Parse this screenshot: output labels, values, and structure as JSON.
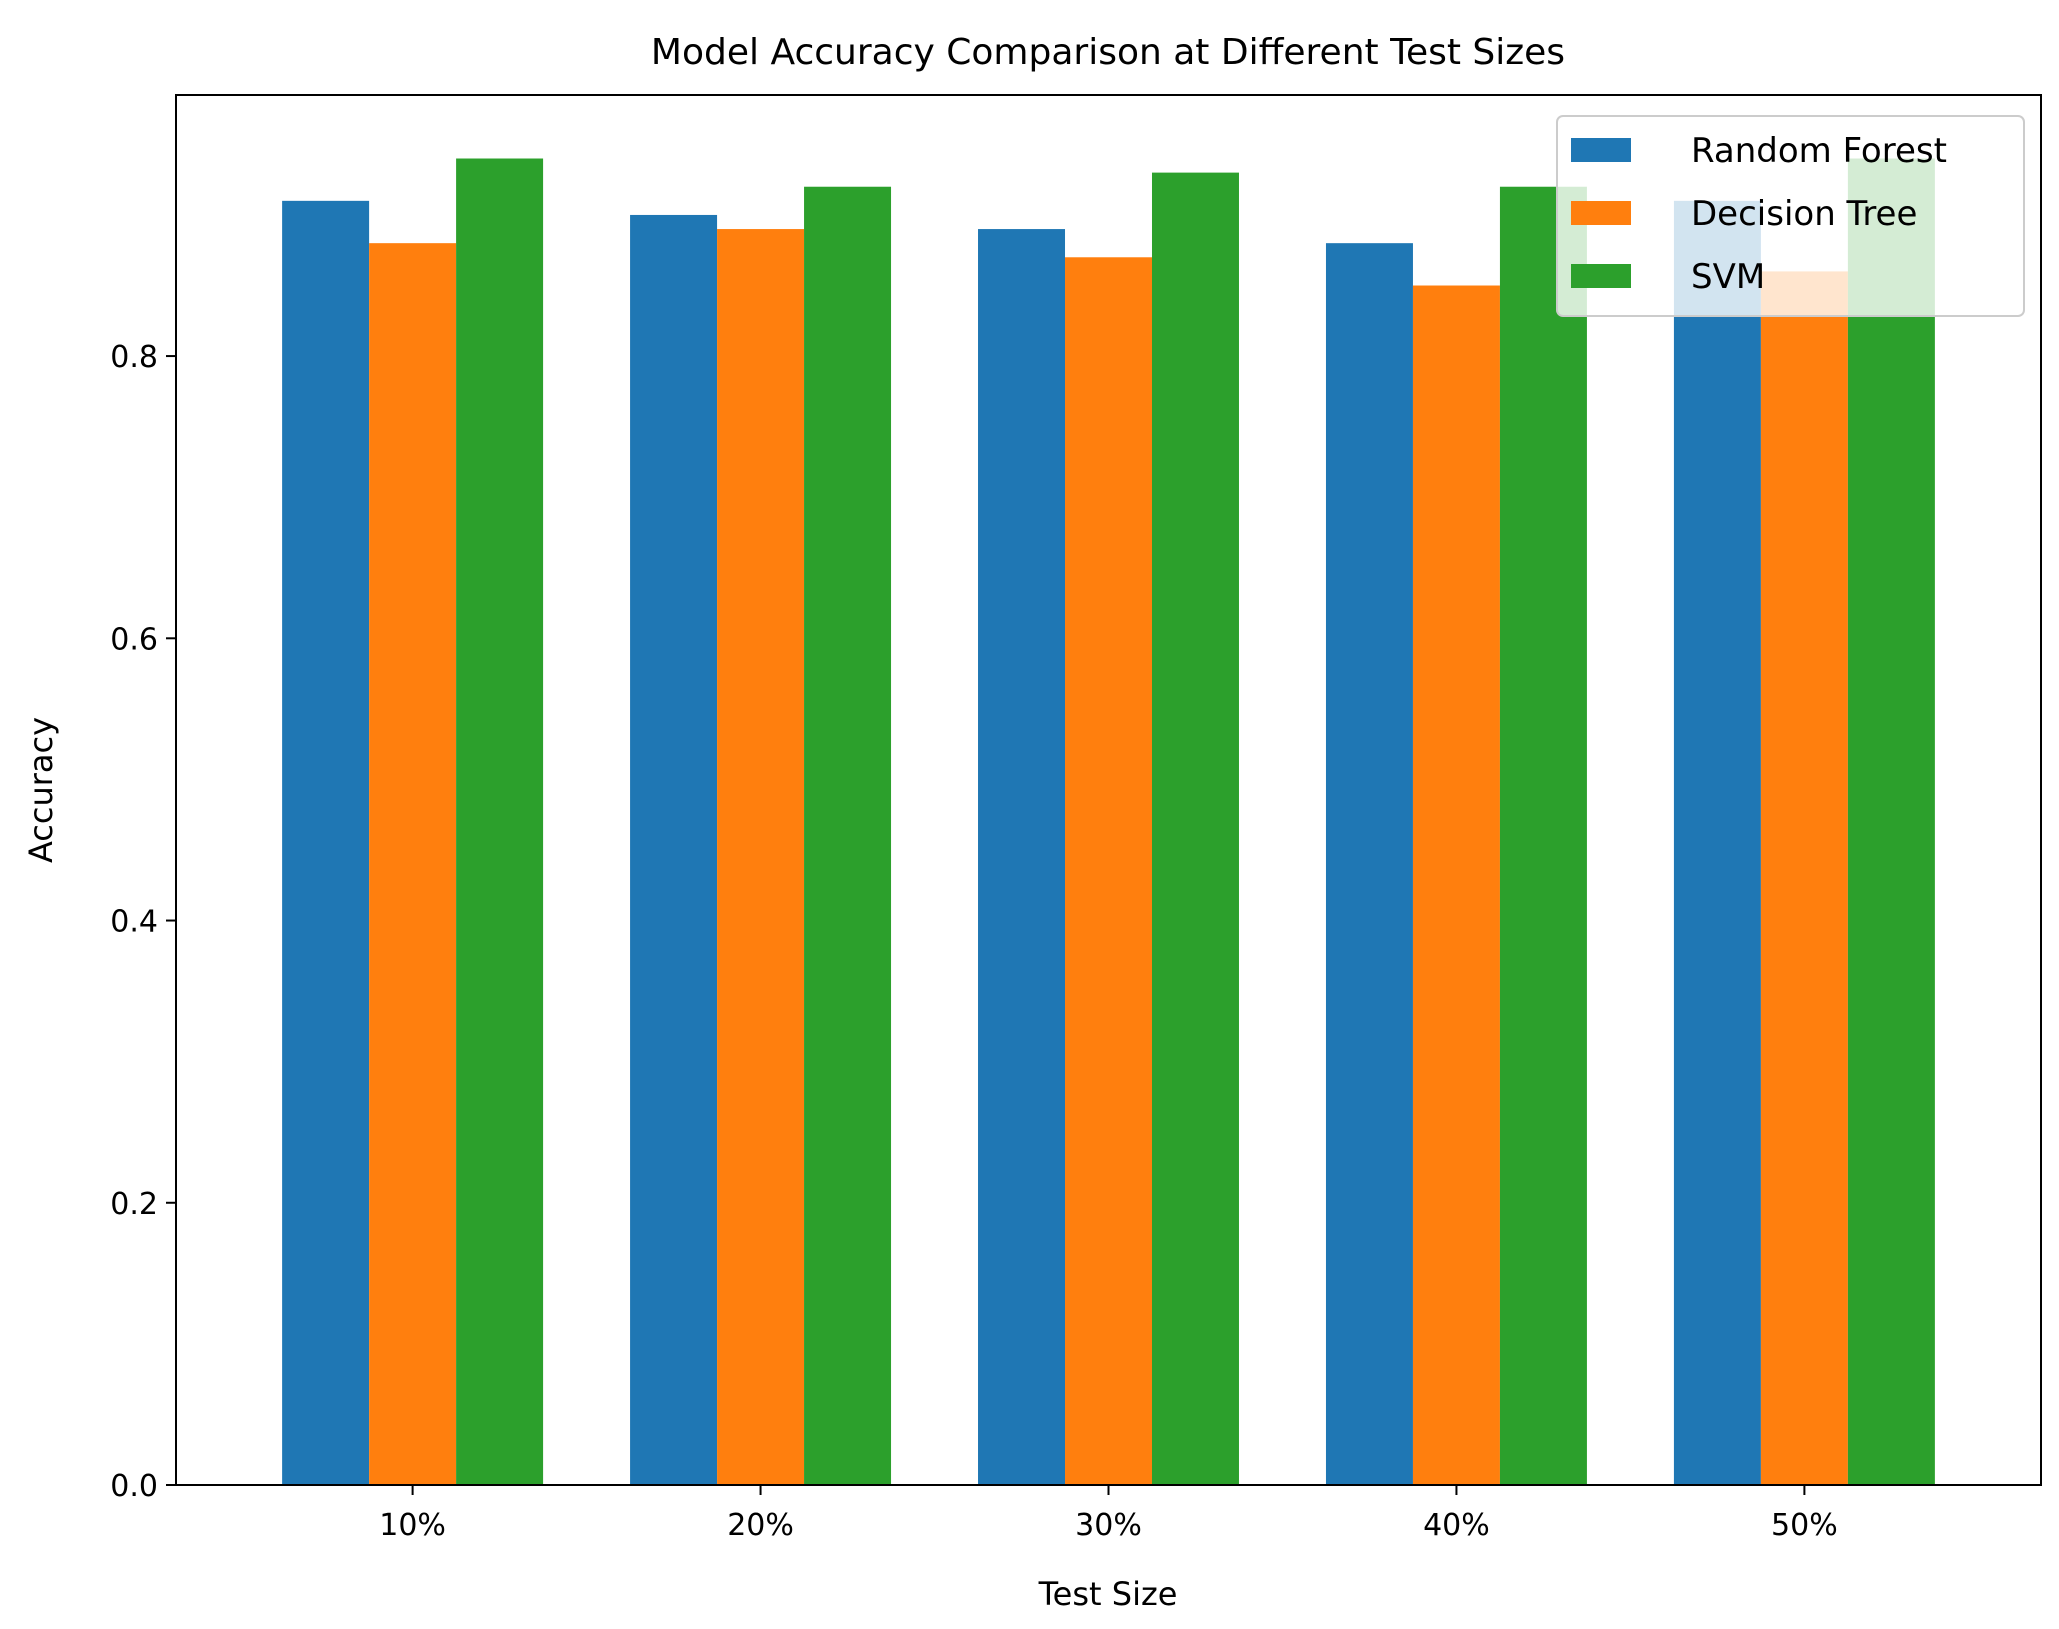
{
  "chart_data": {
    "type": "bar",
    "title": "Model Accuracy Comparison at Different Test Sizes",
    "xlabel": "Test Size",
    "ylabel": "Accuracy",
    "categories": [
      "10%",
      "20%",
      "30%",
      "40%",
      "50%"
    ],
    "series": [
      {
        "name": "Random Forest",
        "color": "#1f77b4",
        "values": [
          0.91,
          0.9,
          0.89,
          0.88,
          0.91
        ]
      },
      {
        "name": "Decision Tree",
        "color": "#ff7f0e",
        "values": [
          0.88,
          0.89,
          0.87,
          0.85,
          0.86
        ]
      },
      {
        "name": "SVM",
        "color": "#2ca02c",
        "values": [
          0.94,
          0.92,
          0.93,
          0.92,
          0.94
        ]
      }
    ],
    "ylim": [
      0,
      0.985
    ],
    "yticks": [
      0.0,
      0.2,
      0.4,
      0.6,
      0.8
    ],
    "ytick_labels": [
      "0.0",
      "0.2",
      "0.4",
      "0.6",
      "0.8"
    ],
    "grid": false,
    "legend_position": "top-right"
  }
}
